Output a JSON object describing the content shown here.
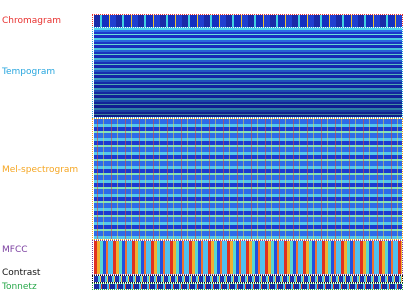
{
  "panels": [
    {
      "label": "Chromagram",
      "color": "#e8312f"
    },
    {
      "label": "Tempogram",
      "color": "#2aa7df"
    },
    {
      "label": "Mel-spectrogram",
      "color": "#f5a623"
    },
    {
      "label": "MFCC",
      "color": "#7b3fa0"
    },
    {
      "label": "Contrast",
      "color": "#111111"
    },
    {
      "label": "Tonnetz",
      "color": "#27a84a"
    }
  ]
}
